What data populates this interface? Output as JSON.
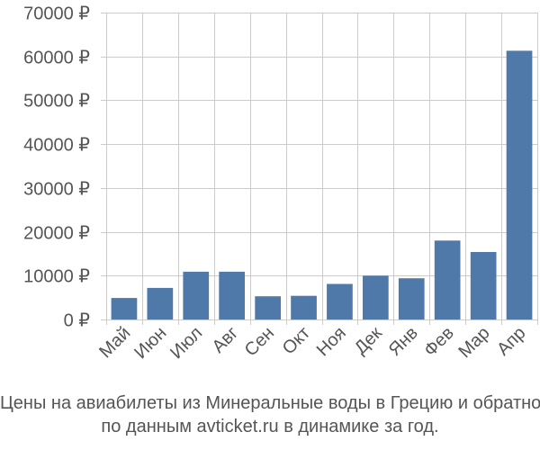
{
  "chart_data": {
    "type": "bar",
    "categories": [
      "Май",
      "Июн",
      "Июл",
      "Авг",
      "Сен",
      "Окт",
      "Ноя",
      "Дек",
      "Янв",
      "Фев",
      "Мар",
      "Апр"
    ],
    "values": [
      4900,
      7200,
      10900,
      10900,
      5300,
      5400,
      8100,
      10000,
      9400,
      18000,
      15400,
      61300
    ],
    "y_ticks": [
      0,
      10000,
      20000,
      30000,
      40000,
      50000,
      60000,
      70000
    ],
    "y_tick_labels": [
      "0 ₽",
      "10000 ₽",
      "20000 ₽",
      "30000 ₽",
      "40000 ₽",
      "50000 ₽",
      "60000 ₽",
      "70000 ₽"
    ],
    "ylim": [
      0,
      70000
    ],
    "grid": true,
    "bar_color": "#4e79a9",
    "grid_color": "#cccccc",
    "label_color": "#555555"
  },
  "caption": {
    "line1": "Цены на авиабилеты из Минеральные воды в Грецию и обратно",
    "line2": "по данным avticket.ru в динамике за год."
  }
}
